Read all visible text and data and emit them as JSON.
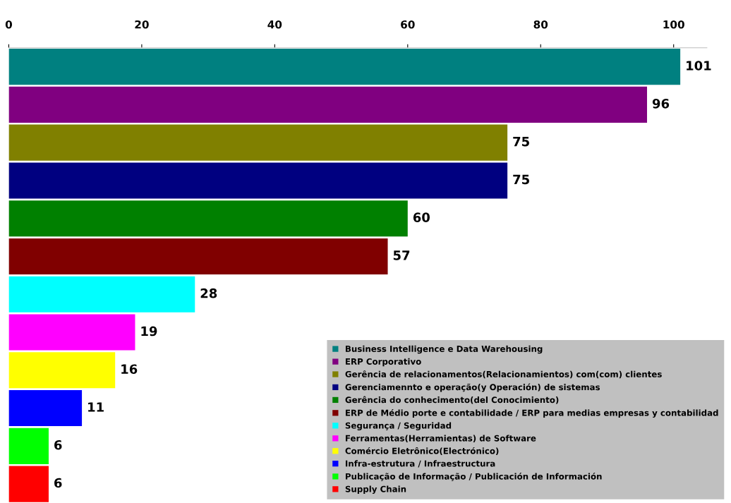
{
  "chart_data": {
    "type": "bar",
    "orientation": "horizontal",
    "stacked": true,
    "categories": [
      null,
      null,
      null,
      null,
      null,
      null,
      null,
      null,
      null,
      null,
      null,
      null
    ],
    "series": [
      {
        "name": "Business Intelligence e Data Warehousing",
        "color": "#008080",
        "values": [
          101,
          null,
          null,
          null,
          null,
          null,
          null,
          null,
          null,
          null,
          null,
          null
        ]
      },
      {
        "name": "ERP Corporativo",
        "color": "#800080",
        "values": [
          null,
          96,
          null,
          null,
          null,
          null,
          null,
          null,
          null,
          null,
          null,
          null
        ]
      },
      {
        "name": "Gerência de relacionamentos(Relacionamientos) com(com) clientes",
        "color": "#808000",
        "values": [
          null,
          null,
          75,
          null,
          null,
          null,
          null,
          null,
          null,
          null,
          null,
          null
        ]
      },
      {
        "name": "Gerenciamennto e operação(y Operación) de sistemas",
        "color": "#000080",
        "values": [
          null,
          null,
          null,
          75,
          null,
          null,
          null,
          null,
          null,
          null,
          null,
          null
        ]
      },
      {
        "name": "Gerência do conhecimento(del Conocimiento)",
        "color": "#008000",
        "values": [
          null,
          null,
          null,
          null,
          60,
          null,
          null,
          null,
          null,
          null,
          null,
          null
        ]
      },
      {
        "name": "ERP de Médio porte e contabilidade / ERP para medias empresas y contabilidad",
        "color": "#800000",
        "values": [
          null,
          null,
          null,
          null,
          null,
          57,
          null,
          null,
          null,
          null,
          null,
          null
        ]
      },
      {
        "name": "Segurança / Seguridad",
        "color": "#00ffff",
        "values": [
          null,
          null,
          null,
          null,
          null,
          null,
          28,
          null,
          null,
          null,
          null,
          null
        ]
      },
      {
        "name": "Ferramentas(Herramientas) de Software",
        "color": "#ff00ff",
        "values": [
          null,
          null,
          null,
          null,
          null,
          null,
          null,
          19,
          null,
          null,
          null,
          null
        ]
      },
      {
        "name": "Comércio Eletrônico(Electrónico)",
        "color": "#ffff00",
        "values": [
          null,
          null,
          null,
          null,
          null,
          null,
          null,
          null,
          16,
          null,
          null,
          null
        ]
      },
      {
        "name": "Infra-estrutura / Infraestructura",
        "color": "#0000ff",
        "values": [
          null,
          null,
          null,
          null,
          null,
          null,
          null,
          null,
          null,
          11,
          null,
          null
        ]
      },
      {
        "name": "Publicação de Informação / Publicación de Información",
        "color": "#00ff00",
        "values": [
          null,
          null,
          null,
          null,
          null,
          null,
          null,
          null,
          null,
          null,
          6,
          null
        ]
      },
      {
        "name": "Supply Chain",
        "color": "#ff0000",
        "values": [
          null,
          null,
          null,
          null,
          null,
          null,
          null,
          null,
          null,
          null,
          null,
          6
        ]
      }
    ],
    "xlim": [
      0,
      105
    ],
    "xticks": [
      0,
      20,
      40,
      60,
      80,
      100
    ],
    "data_labels": true,
    "legend": "bottom right",
    "grid": false
  }
}
